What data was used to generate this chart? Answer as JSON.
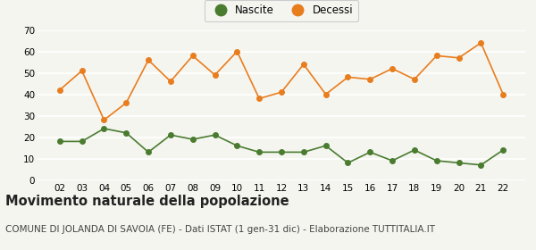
{
  "years": [
    "02",
    "03",
    "04",
    "05",
    "06",
    "07",
    "08",
    "09",
    "10",
    "11",
    "12",
    "13",
    "14",
    "15",
    "16",
    "17",
    "18",
    "19",
    "20",
    "21",
    "22"
  ],
  "nascite": [
    18,
    18,
    24,
    22,
    13,
    21,
    19,
    21,
    16,
    13,
    13,
    13,
    16,
    8,
    13,
    9,
    14,
    9,
    8,
    7,
    14
  ],
  "decessi": [
    42,
    51,
    28,
    36,
    56,
    46,
    58,
    49,
    60,
    38,
    41,
    54,
    40,
    48,
    47,
    52,
    47,
    58,
    57,
    64,
    40
  ],
  "nascite_color": "#4a7c2f",
  "decessi_color": "#e87d1e",
  "background_color": "#f5f5f0",
  "grid_color": "#ffffff",
  "ylim": [
    0,
    70
  ],
  "yticks": [
    0,
    10,
    20,
    30,
    40,
    50,
    60,
    70
  ],
  "title": "Movimento naturale della popolazione",
  "subtitle": "COMUNE DI JOLANDA DI SAVOIA (FE) - Dati ISTAT (1 gen-31 dic) - Elaborazione TUTTITALIA.IT",
  "legend_nascite": "Nascite",
  "legend_decessi": "Decessi",
  "title_fontsize": 10.5,
  "subtitle_fontsize": 7.5,
  "tick_fontsize": 7.5,
  "marker_size": 4,
  "linewidth": 1.2
}
